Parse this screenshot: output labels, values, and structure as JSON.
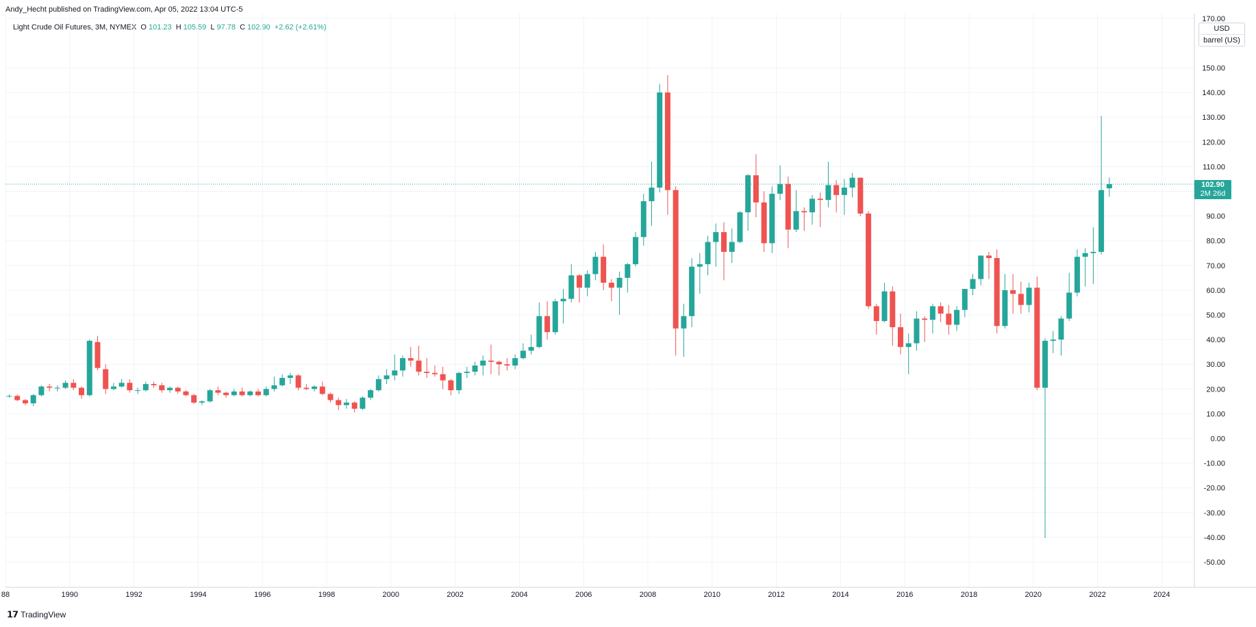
{
  "header": {
    "publish_line": "Andy_Hecht published on TradingView.com, Apr 05, 2022 13:04 UTC-5"
  },
  "legend": {
    "symbol": "Light Crude Oil Futures, 3M, NYMEX",
    "open_label": "O",
    "open_value": "101.23",
    "high_label": "H",
    "high_value": "105.59",
    "low_label": "L",
    "low_value": "97.78",
    "close_label": "C",
    "close_value": "102.90",
    "change": "+2.62 (+2.61%)"
  },
  "price_axis": {
    "currency": "USD",
    "unit": "barrel (US)",
    "current_price": "102.90",
    "time_to_close": "2M 26d"
  },
  "footer": {
    "brand": "TradingView"
  },
  "colors": {
    "up": "#26a69a",
    "down": "#ef5350",
    "grid": "#f0f3fa",
    "axis_text": "#131722"
  },
  "chart_data": {
    "type": "candlestick",
    "timeframe": "3M",
    "ylim": [
      -55,
      172
    ],
    "xlim": [
      1988,
      2025.2
    ],
    "y_ticks": [
      "170.00",
      "150.00",
      "140.00",
      "130.00",
      "120.00",
      "110.00",
      "100.00",
      "90.00",
      "80.00",
      "70.00",
      "60.00",
      "50.00",
      "40.00",
      "30.00",
      "20.00",
      "10.00",
      "0.00",
      "-10.00",
      "-20.00",
      "-30.00",
      "-40.00",
      "-50.00"
    ],
    "x_ticks": [
      "88",
      "1990",
      "1992",
      "1994",
      "1996",
      "1998",
      "2000",
      "2002",
      "2004",
      "2006",
      "2008",
      "2010",
      "2012",
      "2014",
      "2016",
      "2018",
      "2020",
      "2022",
      "2024"
    ],
    "last_close_line": 102.9,
    "candles": [
      [
        1988.0,
        17.0,
        17.8,
        16.5,
        17.2
      ],
      [
        1988.25,
        17.2,
        17.8,
        15.0,
        15.5
      ],
      [
        1988.5,
        15.5,
        16.0,
        13.5,
        14.2
      ],
      [
        1988.75,
        14.2,
        18.0,
        13.0,
        17.5
      ],
      [
        1989.0,
        17.5,
        21.5,
        17.0,
        21.0
      ],
      [
        1989.25,
        21.0,
        22.0,
        19.0,
        20.5
      ],
      [
        1989.5,
        20.5,
        21.5,
        19.0,
        20.5
      ],
      [
        1989.75,
        20.5,
        23.5,
        20.0,
        22.5
      ],
      [
        1990.0,
        22.5,
        24.0,
        19.5,
        20.5
      ],
      [
        1990.25,
        20.5,
        21.0,
        16.0,
        17.5
      ],
      [
        1990.5,
        17.5,
        40.0,
        17.0,
        39.5
      ],
      [
        1990.75,
        39.0,
        41.5,
        27.5,
        28.5
      ],
      [
        1991.0,
        28.0,
        30.0,
        18.0,
        20.0
      ],
      [
        1991.25,
        20.0,
        22.5,
        19.5,
        21.0
      ],
      [
        1991.5,
        21.0,
        24.0,
        20.5,
        22.5
      ],
      [
        1991.75,
        22.5,
        24.0,
        18.5,
        19.5
      ],
      [
        1992.0,
        19.5,
        20.5,
        18.0,
        19.5
      ],
      [
        1992.25,
        19.5,
        23.0,
        19.0,
        22.0
      ],
      [
        1992.5,
        22.0,
        23.0,
        20.5,
        21.5
      ],
      [
        1992.75,
        21.5,
        22.5,
        18.5,
        19.5
      ],
      [
        1993.0,
        19.5,
        21.0,
        18.5,
        20.5
      ],
      [
        1993.25,
        20.5,
        21.0,
        18.0,
        19.0
      ],
      [
        1993.5,
        19.0,
        19.5,
        17.0,
        17.5
      ],
      [
        1993.75,
        17.5,
        18.0,
        14.0,
        14.5
      ],
      [
        1994.0,
        14.5,
        15.5,
        13.5,
        15.0
      ],
      [
        1994.25,
        15.0,
        20.0,
        14.5,
        19.5
      ],
      [
        1994.5,
        19.5,
        21.0,
        17.5,
        18.5
      ],
      [
        1994.75,
        18.5,
        19.0,
        16.5,
        17.5
      ],
      [
        1995.0,
        17.5,
        20.0,
        17.0,
        19.0
      ],
      [
        1995.25,
        19.0,
        20.5,
        17.0,
        17.5
      ],
      [
        1995.5,
        17.5,
        19.5,
        17.0,
        19.0
      ],
      [
        1995.75,
        19.0,
        20.0,
        17.0,
        17.5
      ],
      [
        1996.0,
        17.5,
        21.0,
        17.0,
        20.0
      ],
      [
        1996.25,
        20.0,
        25.0,
        19.0,
        21.5
      ],
      [
        1996.5,
        21.5,
        26.0,
        21.0,
        24.5
      ],
      [
        1996.75,
        24.5,
        26.5,
        22.0,
        25.5
      ],
      [
        1997.0,
        25.5,
        26.0,
        19.5,
        20.5
      ],
      [
        1997.25,
        20.5,
        22.0,
        19.5,
        20.0
      ],
      [
        1997.5,
        20.0,
        21.5,
        19.0,
        21.0
      ],
      [
        1997.75,
        21.0,
        23.0,
        17.5,
        18.0
      ],
      [
        1998.0,
        18.0,
        18.5,
        14.5,
        15.5
      ],
      [
        1998.25,
        15.5,
        16.5,
        11.5,
        13.5
      ],
      [
        1998.5,
        13.5,
        16.0,
        12.0,
        14.5
      ],
      [
        1998.75,
        14.5,
        15.0,
        10.5,
        12.0
      ],
      [
        1999.0,
        12.0,
        17.0,
        11.5,
        16.5
      ],
      [
        1999.25,
        16.5,
        20.0,
        15.5,
        19.5
      ],
      [
        1999.5,
        19.5,
        25.5,
        19.0,
        24.0
      ],
      [
        1999.75,
        24.0,
        28.0,
        22.0,
        25.5
      ],
      [
        2000.0,
        25.5,
        34.0,
        23.5,
        27.5
      ],
      [
        2000.25,
        27.5,
        33.5,
        25.0,
        32.5
      ],
      [
        2000.5,
        32.5,
        37.0,
        29.0,
        31.5
      ],
      [
        2000.75,
        31.5,
        37.5,
        25.5,
        27.0
      ],
      [
        2001.0,
        27.0,
        32.5,
        24.5,
        26.5
      ],
      [
        2001.25,
        26.5,
        29.5,
        25.0,
        26.0
      ],
      [
        2001.5,
        26.0,
        29.0,
        20.0,
        23.5
      ],
      [
        2001.75,
        23.5,
        24.0,
        17.5,
        19.5
      ],
      [
        2002.0,
        19.5,
        27.0,
        18.0,
        26.5
      ],
      [
        2002.25,
        26.5,
        29.0,
        24.5,
        27.0
      ],
      [
        2002.5,
        27.0,
        31.0,
        25.5,
        29.5
      ],
      [
        2002.75,
        29.5,
        33.5,
        25.5,
        31.5
      ],
      [
        2003.0,
        31.5,
        38.0,
        26.0,
        31.0
      ],
      [
        2003.25,
        31.0,
        31.5,
        25.5,
        30.0
      ],
      [
        2003.5,
        30.0,
        32.5,
        27.5,
        29.5
      ],
      [
        2003.75,
        29.5,
        34.0,
        28.0,
        32.5
      ],
      [
        2004.0,
        32.5,
        38.5,
        32.0,
        35.5
      ],
      [
        2004.25,
        35.5,
        42.0,
        34.0,
        37.0
      ],
      [
        2004.5,
        37.0,
        55.0,
        36.5,
        49.5
      ],
      [
        2004.75,
        49.5,
        55.5,
        40.0,
        43.0
      ],
      [
        2005.0,
        43.0,
        56.5,
        42.0,
        55.5
      ],
      [
        2005.25,
        55.5,
        60.5,
        46.5,
        56.5
      ],
      [
        2005.5,
        56.5,
        70.5,
        55.0,
        66.0
      ],
      [
        2005.75,
        66.0,
        66.5,
        55.0,
        61.0
      ],
      [
        2006.0,
        61.0,
        68.0,
        57.5,
        66.5
      ],
      [
        2006.25,
        66.5,
        75.5,
        64.0,
        73.5
      ],
      [
        2006.5,
        73.5,
        78.5,
        60.0,
        63.0
      ],
      [
        2006.75,
        63.0,
        64.5,
        55.5,
        61.0
      ],
      [
        2007.0,
        61.0,
        67.5,
        50.0,
        65.0
      ],
      [
        2007.25,
        65.0,
        71.0,
        59.0,
        70.5
      ],
      [
        2007.5,
        70.5,
        83.5,
        69.5,
        81.5
      ],
      [
        2007.75,
        81.5,
        99.0,
        78.0,
        96.0
      ],
      [
        2008.0,
        96.0,
        112.0,
        86.0,
        101.5
      ],
      [
        2008.25,
        101.5,
        143.5,
        99.5,
        140.0
      ],
      [
        2008.5,
        140.0,
        147.0,
        90.5,
        100.5
      ],
      [
        2008.75,
        100.5,
        102.0,
        33.5,
        44.5
      ],
      [
        2009.0,
        44.5,
        54.5,
        33.0,
        49.5
      ],
      [
        2009.25,
        49.5,
        73.0,
        45.0,
        69.5
      ],
      [
        2009.5,
        69.5,
        75.0,
        58.5,
        70.5
      ],
      [
        2009.75,
        70.5,
        82.0,
        66.0,
        79.5
      ],
      [
        2010.0,
        79.5,
        87.0,
        69.5,
        83.5
      ],
      [
        2010.25,
        83.5,
        87.5,
        64.0,
        75.5
      ],
      [
        2010.5,
        75.5,
        85.0,
        71.0,
        79.5
      ],
      [
        2010.75,
        79.5,
        92.0,
        79.0,
        91.5
      ],
      [
        2011.0,
        91.5,
        107.0,
        84.0,
        106.5
      ],
      [
        2011.25,
        106.5,
        115.0,
        89.5,
        95.5
      ],
      [
        2011.5,
        95.5,
        100.0,
        75.5,
        79.0
      ],
      [
        2011.75,
        79.0,
        102.0,
        75.0,
        99.0
      ],
      [
        2012.0,
        99.0,
        110.5,
        96.5,
        103.0
      ],
      [
        2012.25,
        103.0,
        106.0,
        77.0,
        84.5
      ],
      [
        2012.5,
        84.5,
        100.5,
        83.5,
        92.0
      ],
      [
        2012.75,
        92.0,
        93.5,
        84.0,
        91.5
      ],
      [
        2013.0,
        91.5,
        98.5,
        86.5,
        97.0
      ],
      [
        2013.25,
        97.0,
        99.5,
        85.5,
        96.5
      ],
      [
        2013.5,
        96.5,
        112.0,
        93.5,
        102.5
      ],
      [
        2013.75,
        102.5,
        104.5,
        91.5,
        98.5
      ],
      [
        2014.0,
        98.5,
        105.0,
        90.5,
        101.5
      ],
      [
        2014.25,
        101.5,
        107.5,
        97.5,
        105.5
      ],
      [
        2014.5,
        105.5,
        105.5,
        90.0,
        91.0
      ],
      [
        2014.75,
        91.0,
        92.0,
        52.5,
        53.5
      ],
      [
        2015.0,
        53.5,
        54.5,
        42.0,
        47.5
      ],
      [
        2015.25,
        47.5,
        63.0,
        47.0,
        59.5
      ],
      [
        2015.5,
        59.5,
        61.5,
        37.5,
        45.0
      ],
      [
        2015.75,
        45.0,
        50.5,
        34.0,
        37.0
      ],
      [
        2016.0,
        37.0,
        42.5,
        26.0,
        38.5
      ],
      [
        2016.25,
        38.5,
        51.5,
        35.5,
        48.5
      ],
      [
        2016.5,
        48.5,
        49.5,
        39.0,
        48.0
      ],
      [
        2016.75,
        48.0,
        54.5,
        42.5,
        53.5
      ],
      [
        2017.0,
        53.5,
        55.0,
        47.0,
        50.5
      ],
      [
        2017.25,
        50.5,
        54.0,
        42.0,
        46.0
      ],
      [
        2017.5,
        46.0,
        53.5,
        43.5,
        52.0
      ],
      [
        2017.75,
        52.0,
        60.5,
        49.0,
        60.5
      ],
      [
        2018.0,
        60.5,
        66.5,
        58.0,
        64.5
      ],
      [
        2018.25,
        64.5,
        72.5,
        62.0,
        74.0
      ],
      [
        2018.5,
        74.0,
        75.5,
        64.5,
        73.0
      ],
      [
        2018.75,
        73.0,
        76.5,
        42.5,
        45.5
      ],
      [
        2019.0,
        45.5,
        66.5,
        44.5,
        60.0
      ],
      [
        2019.25,
        60.0,
        66.5,
        50.5,
        58.5
      ],
      [
        2019.5,
        58.5,
        63.5,
        50.5,
        54.0
      ],
      [
        2019.75,
        54.0,
        63.0,
        51.0,
        61.0
      ],
      [
        2020.0,
        61.0,
        65.5,
        19.5,
        20.5
      ],
      [
        2020.25,
        20.5,
        40.5,
        -40.3,
        39.5
      ],
      [
        2020.5,
        39.5,
        43.5,
        34.5,
        40.0
      ],
      [
        2020.75,
        40.0,
        49.5,
        33.5,
        48.5
      ],
      [
        2021.0,
        48.5,
        67.0,
        47.5,
        59.0
      ],
      [
        2021.25,
        59.0,
        76.5,
        57.5,
        73.5
      ],
      [
        2021.5,
        73.5,
        77.0,
        61.5,
        75.0
      ],
      [
        2021.75,
        75.0,
        85.5,
        62.5,
        75.5
      ],
      [
        2022.0,
        75.5,
        130.5,
        74.5,
        100.5
      ],
      [
        2022.25,
        101.23,
        105.59,
        97.78,
        102.9
      ]
    ]
  }
}
